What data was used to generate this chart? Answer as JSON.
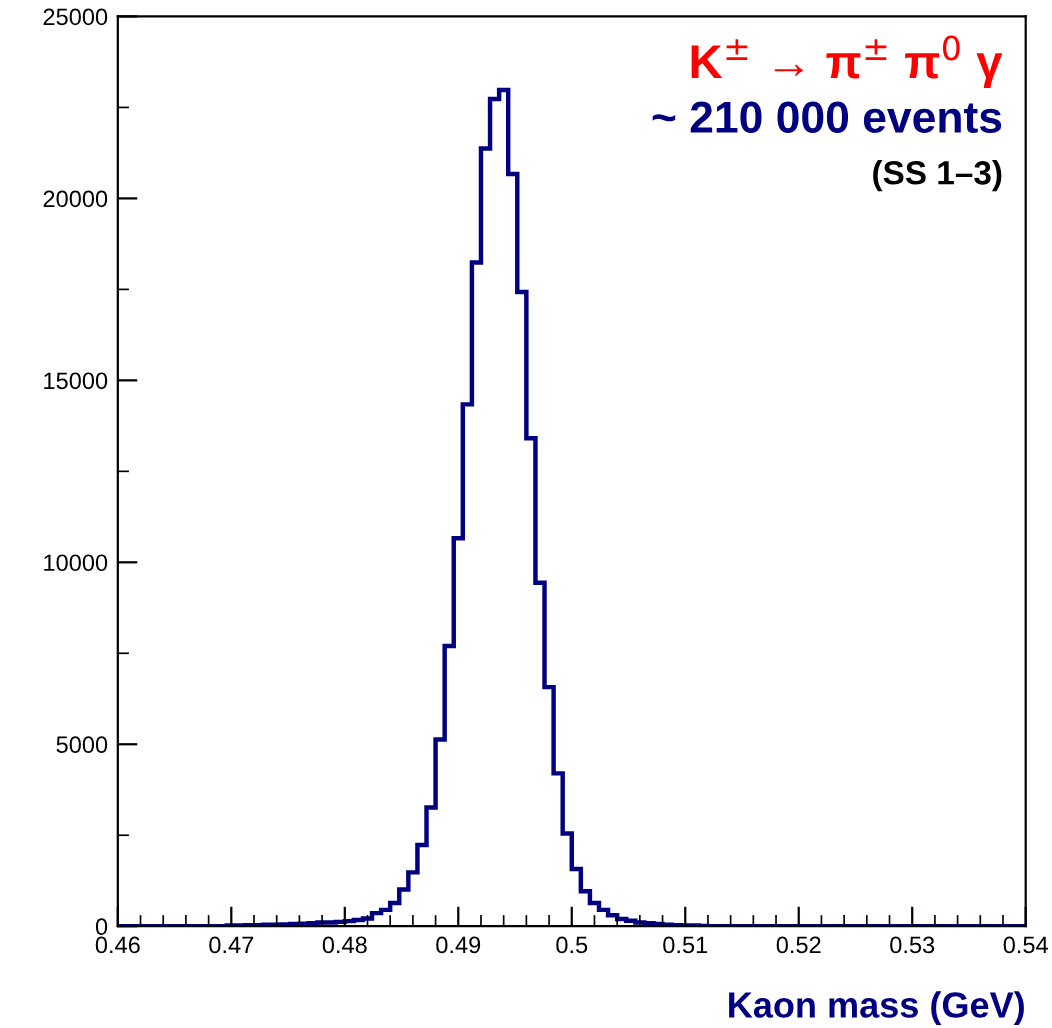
{
  "chart_data": {
    "type": "histogram",
    "xlabel": "Kaon mass (GeV)",
    "annotations": [
      "K$^{±}$ → π$^{±}$ π$^{0}$ γ",
      "~ 210 000 events",
      "(SS 1–3)"
    ],
    "color": "#000080",
    "bins": [
      0.46,
      0.4608,
      0.4616,
      0.4624,
      0.4632,
      0.464,
      0.4648,
      0.4656,
      0.4664,
      0.4672,
      0.468,
      0.4688,
      0.4696,
      0.4704,
      0.4712,
      0.472,
      0.4728,
      0.4736,
      0.4744,
      0.4752,
      0.476,
      0.4768,
      0.4776,
      0.4784,
      0.4792,
      0.48,
      0.4808,
      0.4816,
      0.4824,
      0.4832,
      0.484,
      0.4848,
      0.4856,
      0.4864,
      0.4872,
      0.488,
      0.4888,
      0.4896,
      0.4904,
      0.4912,
      0.492,
      0.4928,
      0.4936,
      0.4944,
      0.4952,
      0.496,
      0.4968,
      0.4976,
      0.4984,
      0.4992,
      0.5,
      0.5008,
      0.5016,
      0.5024,
      0.5032,
      0.504,
      0.5048,
      0.5056,
      0.5064,
      0.5072,
      0.508,
      0.5088,
      0.5096,
      0.5104,
      0.5112,
      0.512,
      0.5128,
      0.5136,
      0.5144,
      0.5152,
      0.516,
      0.5168,
      0.5176,
      0.5184,
      0.5192,
      0.52,
      0.5208,
      0.5216,
      0.5224,
      0.5232,
      0.524,
      0.5248,
      0.5256,
      0.5264,
      0.5272,
      0.528,
      0.5288,
      0.5296,
      0.5304,
      0.5312,
      0.532,
      0.5328,
      0.5336,
      0.5344,
      0.5352,
      0.536,
      0.5368,
      0.5376,
      0.5384,
      0.5392,
      0.54
    ],
    "values": [
      0,
      0,
      0,
      0,
      0,
      0,
      0,
      0,
      0,
      0,
      0,
      0,
      20,
      20,
      30,
      30,
      40,
      40,
      50,
      60,
      70,
      80,
      100,
      100,
      120,
      140,
      170,
      210,
      360,
      450,
      640,
      1010,
      1480,
      2230,
      3260,
      5130,
      7700,
      10660,
      14340,
      18240,
      21370,
      22730,
      22980,
      20670,
      17430,
      13410,
      9440,
      6570,
      4200,
      2550,
      1570,
      960,
      640,
      450,
      300,
      200,
      150,
      100,
      80,
      60,
      40,
      30,
      20,
      20,
      10,
      0,
      0,
      0,
      0,
      0,
      0,
      0,
      0,
      0,
      0,
      0,
      0,
      0,
      0,
      0,
      0,
      0,
      0,
      0,
      0,
      0,
      0,
      0,
      0,
      0,
      0,
      0,
      0,
      0,
      0,
      0,
      0,
      0,
      0,
      0
    ],
    "xlim": [
      0.46,
      0.54
    ],
    "xticks": [
      0.46,
      0.47,
      0.48,
      0.49,
      0.5,
      0.51,
      0.52,
      0.53,
      0.54
    ],
    "ylim": [
      0,
      25000
    ],
    "yticks": [
      0,
      5000,
      10000,
      15000,
      20000,
      25000
    ],
    "grid": false
  }
}
